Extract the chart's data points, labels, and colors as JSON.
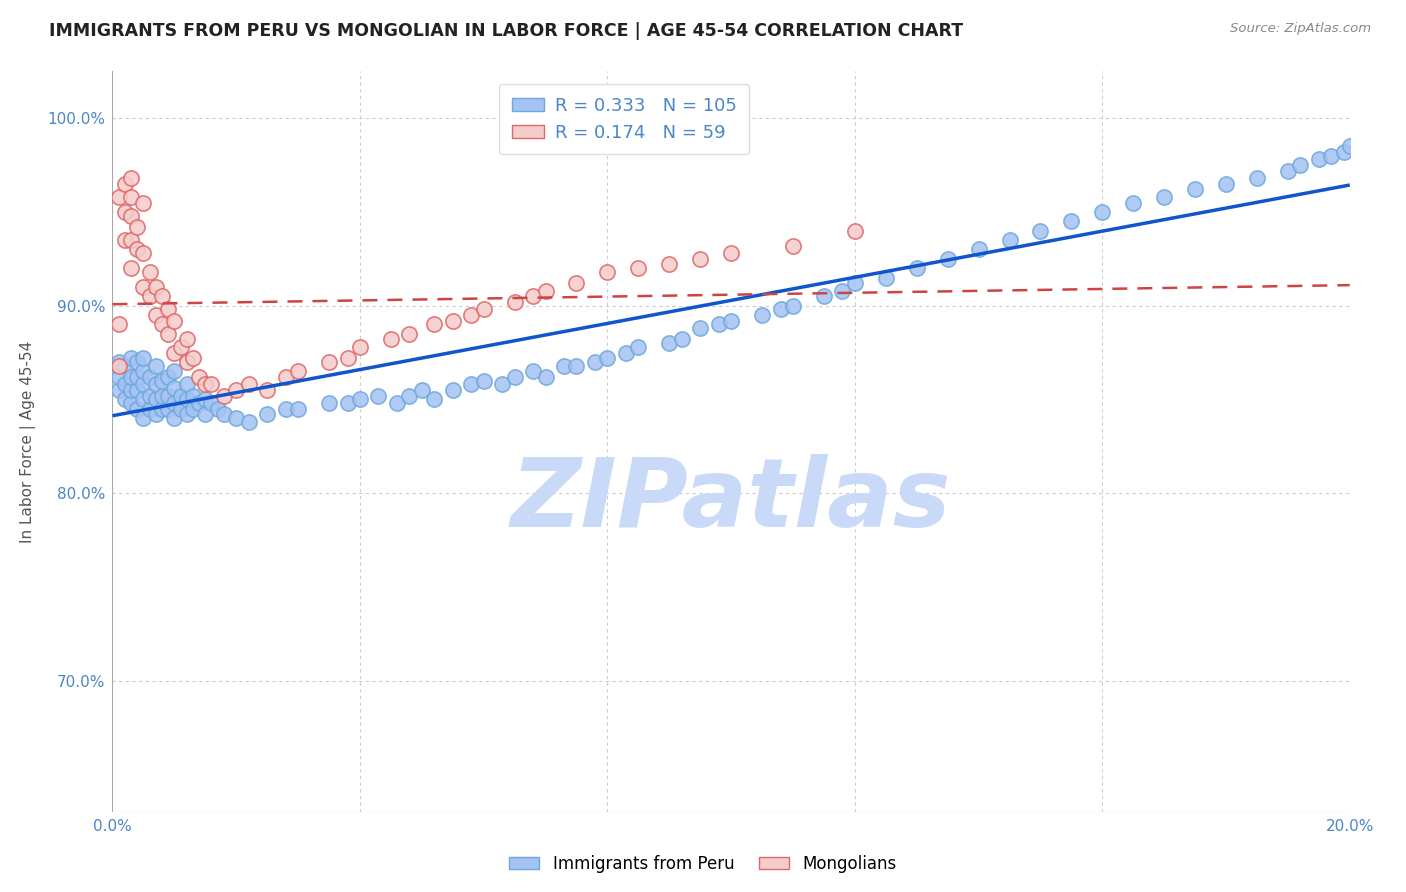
{
  "title": "IMMIGRANTS FROM PERU VS MONGOLIAN IN LABOR FORCE | AGE 45-54 CORRELATION CHART",
  "source": "Source: ZipAtlas.com",
  "ylabel": "In Labor Force | Age 45-54",
  "xlim": [
    0.0,
    0.2
  ],
  "ylim": [
    0.63,
    1.025
  ],
  "blue_R": 0.333,
  "blue_N": 105,
  "pink_R": 0.174,
  "pink_N": 59,
  "blue_color": "#a4c2f4",
  "blue_edge_color": "#6fa8dc",
  "pink_color": "#f4cccc",
  "pink_edge_color": "#e06666",
  "trend_blue_color": "#1155cc",
  "trend_pink_dashes": [
    6,
    4
  ],
  "watermark": "ZIPatlas",
  "watermark_color": "#c9daf8",
  "legend_color": "#4a86c8",
  "ytick_color": "#4a86c8",
  "xtick_color": "#4a86c8",
  "blue_x": [
    0.001,
    0.001,
    0.001,
    0.002,
    0.002,
    0.002,
    0.003,
    0.003,
    0.003,
    0.003,
    0.004,
    0.004,
    0.004,
    0.004,
    0.005,
    0.005,
    0.005,
    0.005,
    0.005,
    0.006,
    0.006,
    0.006,
    0.007,
    0.007,
    0.007,
    0.007,
    0.008,
    0.008,
    0.008,
    0.009,
    0.009,
    0.009,
    0.01,
    0.01,
    0.01,
    0.01,
    0.011,
    0.011,
    0.012,
    0.012,
    0.012,
    0.013,
    0.013,
    0.014,
    0.015,
    0.015,
    0.016,
    0.017,
    0.018,
    0.02,
    0.022,
    0.025,
    0.028,
    0.03,
    0.035,
    0.038,
    0.04,
    0.043,
    0.046,
    0.048,
    0.05,
    0.052,
    0.055,
    0.058,
    0.06,
    0.063,
    0.065,
    0.068,
    0.07,
    0.073,
    0.075,
    0.078,
    0.08,
    0.083,
    0.085,
    0.09,
    0.092,
    0.095,
    0.098,
    0.1,
    0.105,
    0.108,
    0.11,
    0.115,
    0.118,
    0.12,
    0.125,
    0.13,
    0.135,
    0.14,
    0.145,
    0.15,
    0.155,
    0.16,
    0.165,
    0.17,
    0.175,
    0.18,
    0.185,
    0.19,
    0.192,
    0.195,
    0.197,
    0.199,
    0.2
  ],
  "blue_y": [
    0.855,
    0.862,
    0.87,
    0.85,
    0.858,
    0.868,
    0.848,
    0.855,
    0.862,
    0.872,
    0.845,
    0.855,
    0.862,
    0.87,
    0.84,
    0.85,
    0.858,
    0.865,
    0.872,
    0.845,
    0.852,
    0.862,
    0.842,
    0.85,
    0.858,
    0.868,
    0.845,
    0.852,
    0.86,
    0.845,
    0.852,
    0.862,
    0.84,
    0.848,
    0.856,
    0.865,
    0.845,
    0.852,
    0.842,
    0.85,
    0.858,
    0.845,
    0.852,
    0.848,
    0.842,
    0.85,
    0.848,
    0.845,
    0.842,
    0.84,
    0.838,
    0.842,
    0.845,
    0.845,
    0.848,
    0.848,
    0.85,
    0.852,
    0.848,
    0.852,
    0.855,
    0.85,
    0.855,
    0.858,
    0.86,
    0.858,
    0.862,
    0.865,
    0.862,
    0.868,
    0.868,
    0.87,
    0.872,
    0.875,
    0.878,
    0.88,
    0.882,
    0.888,
    0.89,
    0.892,
    0.895,
    0.898,
    0.9,
    0.905,
    0.908,
    0.912,
    0.915,
    0.92,
    0.925,
    0.93,
    0.935,
    0.94,
    0.945,
    0.95,
    0.955,
    0.958,
    0.962,
    0.965,
    0.968,
    0.972,
    0.975,
    0.978,
    0.98,
    0.982,
    0.985
  ],
  "pink_x": [
    0.001,
    0.001,
    0.001,
    0.002,
    0.002,
    0.002,
    0.003,
    0.003,
    0.003,
    0.003,
    0.003,
    0.004,
    0.004,
    0.005,
    0.005,
    0.005,
    0.006,
    0.006,
    0.007,
    0.007,
    0.008,
    0.008,
    0.009,
    0.009,
    0.01,
    0.01,
    0.011,
    0.012,
    0.012,
    0.013,
    0.014,
    0.015,
    0.016,
    0.018,
    0.02,
    0.022,
    0.025,
    0.028,
    0.03,
    0.035,
    0.038,
    0.04,
    0.045,
    0.048,
    0.052,
    0.055,
    0.058,
    0.06,
    0.065,
    0.068,
    0.07,
    0.075,
    0.08,
    0.085,
    0.09,
    0.095,
    0.1,
    0.11,
    0.12
  ],
  "pink_y": [
    0.868,
    0.89,
    0.958,
    0.935,
    0.95,
    0.965,
    0.92,
    0.935,
    0.948,
    0.958,
    0.968,
    0.93,
    0.942,
    0.91,
    0.928,
    0.955,
    0.905,
    0.918,
    0.895,
    0.91,
    0.89,
    0.905,
    0.885,
    0.898,
    0.875,
    0.892,
    0.878,
    0.87,
    0.882,
    0.872,
    0.862,
    0.858,
    0.858,
    0.852,
    0.855,
    0.858,
    0.855,
    0.862,
    0.865,
    0.87,
    0.872,
    0.878,
    0.882,
    0.885,
    0.89,
    0.892,
    0.895,
    0.898,
    0.902,
    0.905,
    0.908,
    0.912,
    0.918,
    0.92,
    0.922,
    0.925,
    0.928,
    0.932,
    0.94
  ]
}
